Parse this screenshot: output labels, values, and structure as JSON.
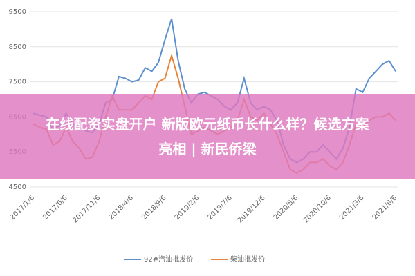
{
  "chart_data": {
    "type": "line",
    "categories": [
      "2017/1/6",
      null,
      null,
      null,
      null,
      "2017/6/6",
      null,
      null,
      null,
      null,
      "2017/11/6",
      null,
      null,
      null,
      null,
      "2018/4/6",
      null,
      null,
      null,
      null,
      "2018/9/6",
      null,
      null,
      null,
      null,
      "2019/2/6",
      null,
      null,
      null,
      null,
      "2019/7/6",
      null,
      null,
      null,
      null,
      "2019/12/6",
      null,
      null,
      null,
      null,
      "2020/5/6",
      null,
      null,
      null,
      null,
      "2020/10/6",
      null,
      null,
      null,
      null,
      "2021/3/6",
      null,
      null,
      null,
      null,
      "2021/8/6"
    ],
    "series": [
      {
        "name": "92#汽油批发价",
        "color": "#5b8fd0",
        "values": [
          6600,
          6550,
          6500,
          6150,
          6250,
          6600,
          6300,
          6200,
          6100,
          6050,
          6300,
          6900,
          7000,
          7650,
          7600,
          7500,
          7550,
          7900,
          7800,
          8050,
          8700,
          9300,
          8100,
          7300,
          6900,
          7150,
          7200,
          7100,
          7000,
          6800,
          6700,
          6900,
          7600,
          6900,
          6700,
          6800,
          6700,
          6400,
          5700,
          5300,
          5200,
          5300,
          5500,
          5500,
          5700,
          5500,
          5300,
          5600,
          6200,
          7300,
          7200,
          7600,
          7800,
          8000,
          8100,
          7800
        ]
      },
      {
        "name": "柴油批发价",
        "color": "#e8833a",
        "values": [
          6300,
          6200,
          6150,
          5700,
          5800,
          6200,
          5800,
          5600,
          5300,
          5350,
          5800,
          6500,
          7100,
          6700,
          6700,
          6700,
          6900,
          7100,
          7000,
          7500,
          7600,
          8250,
          7600,
          6800,
          6000,
          6100,
          6200,
          6100,
          6000,
          6100,
          6200,
          6400,
          7000,
          6500,
          6400,
          6600,
          6300,
          6000,
          5500,
          5000,
          4900,
          5000,
          5200,
          5200,
          5300,
          5100,
          5000,
          5200,
          5700,
          6300,
          6200,
          6400,
          6500,
          6500,
          6600,
          6400
        ]
      }
    ],
    "ylim": [
      4500,
      9500
    ],
    "yticks": [
      4500,
      5500,
      6500,
      7500,
      8500,
      9500
    ],
    "grid": true
  },
  "banner": {
    "lines": [
      "在线配资实盘开户 新版欧元纸币长什么样？候选方案",
      "亮相 | 新民侨梁"
    ]
  }
}
